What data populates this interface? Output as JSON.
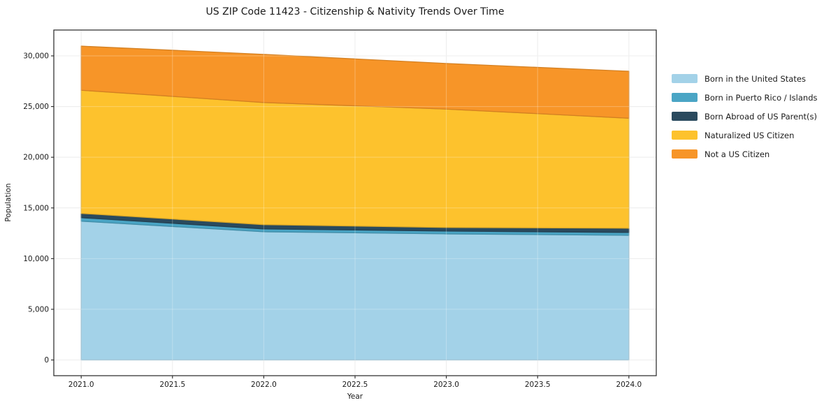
{
  "title": "US ZIP Code 11423 - Citizenship & Nativity Trends Over Time",
  "chart_data": {
    "type": "area",
    "stacked": true,
    "title": "US ZIP Code 11423 - Citizenship & Nativity Trends Over Time",
    "xlabel": "Year",
    "ylabel": "Population",
    "x": [
      2021,
      2022,
      2023,
      2024
    ],
    "series": [
      {
        "name": "Born in the United States",
        "color": "#a3d2e8",
        "values": [
          13690,
          12650,
          12440,
          12300
        ]
      },
      {
        "name": "Born in Puerto Rico / Islands",
        "color": "#4aa5c5",
        "values": [
          350,
          280,
          280,
          280
        ]
      },
      {
        "name": "Born Abroad of US Parent(s)",
        "color": "#2a4a5e",
        "values": [
          420,
          420,
          350,
          420
        ]
      },
      {
        "name": "Naturalized US Citizen",
        "color": "#fdc22d",
        "values": [
          12150,
          12050,
          11680,
          10850
        ]
      },
      {
        "name": "Not a US Citizen",
        "color": "#f79528",
        "values": [
          4350,
          4750,
          4500,
          4630
        ]
      }
    ],
    "totals": [
      30960,
      30150,
      29250,
      28480
    ],
    "xlim": [
      2020.85,
      2024.15
    ],
    "ylim": [
      -1550,
      32550
    ],
    "xticks": [
      "2021.0",
      "2021.5",
      "2022.0",
      "2022.5",
      "2023.0",
      "2023.5",
      "2024.0"
    ],
    "xtick_values": [
      2021.0,
      2021.5,
      2022.0,
      2022.5,
      2023.0,
      2023.5,
      2024.0
    ],
    "yticks": [
      "0",
      "5,000",
      "10,000",
      "15,000",
      "20,000",
      "25,000",
      "30,000"
    ],
    "ytick_values": [
      0,
      5000,
      10000,
      15000,
      20000,
      25000,
      30000
    ],
    "grid": true,
    "legend_position": "right-outside"
  },
  "colors": {
    "spine": "#262626",
    "grid_under": "#e7e7e7",
    "grid_over_alpha": "rgba(255,255,255,0.28)",
    "background": "#ffffff"
  }
}
